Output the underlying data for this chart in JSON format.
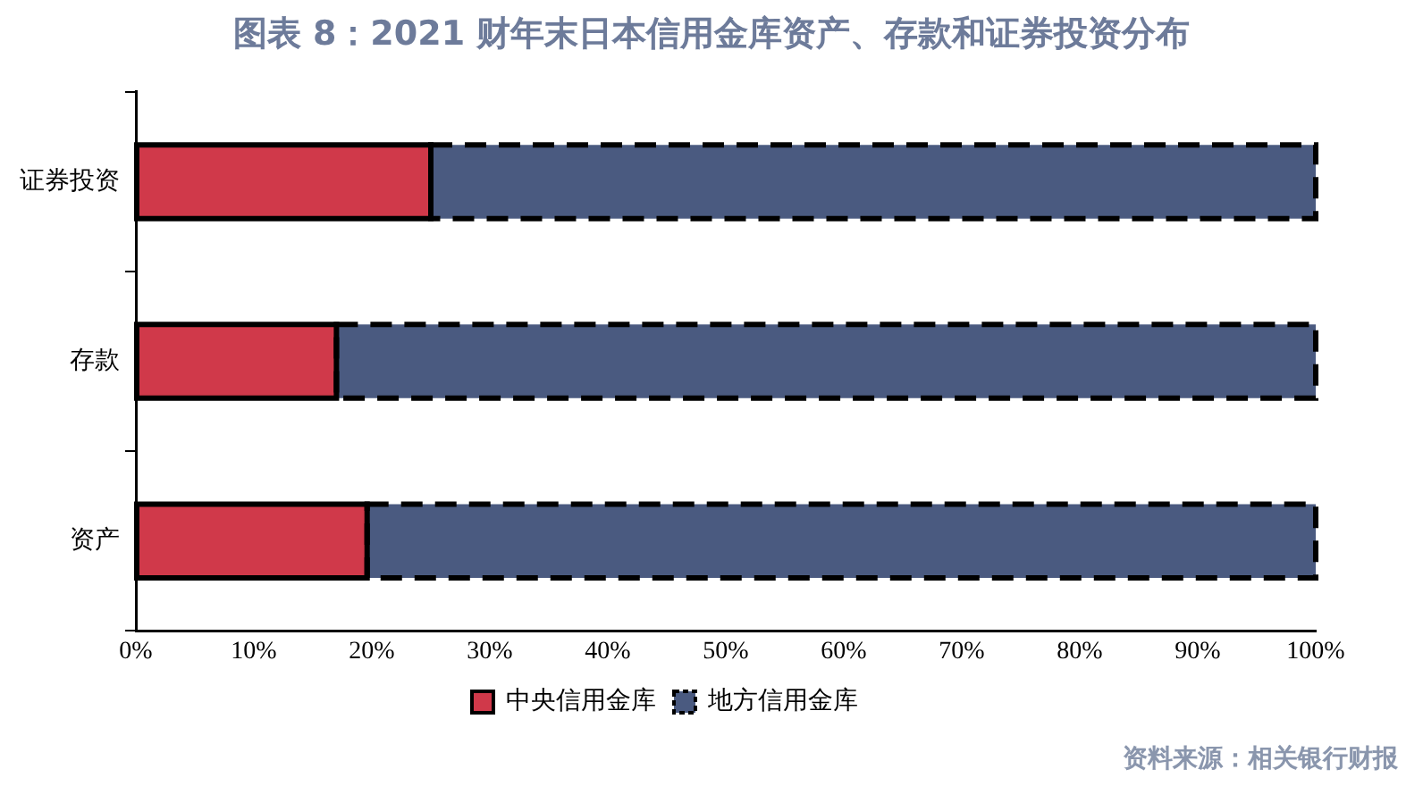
{
  "chart_data": {
    "type": "bar",
    "title": "图表 8：2021 财年末日本信用金库资产、存款和证券投资分布",
    "orientation": "horizontal",
    "stacked": true,
    "categories": [
      "证券投资",
      "存款",
      "资产"
    ],
    "series": [
      {
        "name": "中央信用金库",
        "color": "#d0394a",
        "values": [
          25,
          17,
          19.6
        ]
      },
      {
        "name": "地方信用金库",
        "color": "#4a5a80",
        "values": [
          75,
          83,
          80.4
        ]
      }
    ],
    "xlim": [
      0,
      100
    ],
    "xticks": [
      {
        "value": 0,
        "label": "0%"
      },
      {
        "value": 10,
        "label": "10%"
      },
      {
        "value": 20,
        "label": "20%"
      },
      {
        "value": 30,
        "label": "30%"
      },
      {
        "value": 40,
        "label": "40%"
      },
      {
        "value": 50,
        "label": "50%"
      },
      {
        "value": 60,
        "label": "60%"
      },
      {
        "value": 70,
        "label": "70%"
      },
      {
        "value": 80,
        "label": "80%"
      },
      {
        "value": 90,
        "label": "90%"
      },
      {
        "value": 100,
        "label": "100%"
      }
    ],
    "grid": false,
    "legend": "bottom",
    "annotations": [
      "资料来源：相关银行财报"
    ]
  }
}
